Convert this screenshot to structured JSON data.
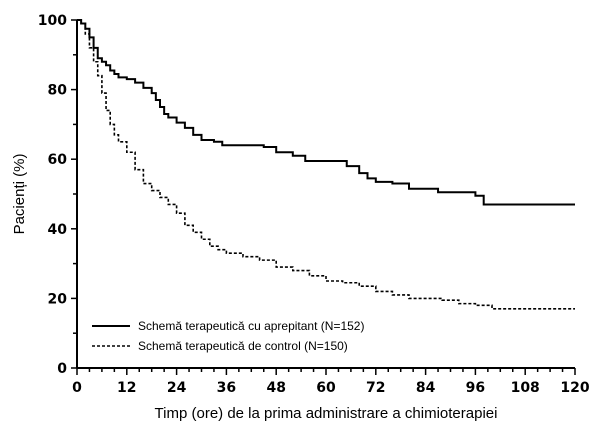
{
  "chart_data": {
    "type": "line",
    "xlabel": "Timp (ore) de la prima administrare a chimioterapiei",
    "ylabel": "Pacienți (%)",
    "xlim": [
      0,
      120
    ],
    "ylim": [
      0,
      100
    ],
    "xticks": [
      0,
      12,
      24,
      36,
      48,
      60,
      72,
      84,
      96,
      108,
      120
    ],
    "yticks": [
      0,
      20,
      40,
      60,
      80,
      100
    ],
    "grid": false,
    "legend_position": "bottom-left",
    "series": [
      {
        "name": "Schemă terapeutică cu aprepitant (N=152)",
        "style": "solid",
        "color": "#000000",
        "points": [
          [
            0,
            100
          ],
          [
            1,
            99
          ],
          [
            2,
            97.5
          ],
          [
            3,
            95
          ],
          [
            4,
            92
          ],
          [
            5,
            89
          ],
          [
            6,
            88
          ],
          [
            7,
            87
          ],
          [
            8,
            85.5
          ],
          [
            9,
            84.5
          ],
          [
            10,
            83.5
          ],
          [
            12,
            83
          ],
          [
            14,
            82
          ],
          [
            16,
            80.5
          ],
          [
            18,
            79
          ],
          [
            19,
            77
          ],
          [
            20,
            75
          ],
          [
            21,
            73
          ],
          [
            22,
            72
          ],
          [
            24,
            70.5
          ],
          [
            26,
            69
          ],
          [
            28,
            67
          ],
          [
            30,
            65.5
          ],
          [
            33,
            65
          ],
          [
            35,
            64
          ],
          [
            40,
            64
          ],
          [
            45,
            63.5
          ],
          [
            48,
            62
          ],
          [
            52,
            61
          ],
          [
            55,
            59.5
          ],
          [
            60,
            59.5
          ],
          [
            63,
            59.5
          ],
          [
            65,
            58
          ],
          [
            68,
            56
          ],
          [
            70,
            54.5
          ],
          [
            72,
            53.5
          ],
          [
            76,
            53
          ],
          [
            80,
            51.5
          ],
          [
            84,
            51.5
          ],
          [
            87,
            50.5
          ],
          [
            92,
            50.5
          ],
          [
            96,
            49.5
          ],
          [
            98,
            47
          ],
          [
            104,
            47
          ],
          [
            108,
            47
          ],
          [
            112,
            47
          ],
          [
            116,
            47
          ],
          [
            120,
            47
          ]
        ]
      },
      {
        "name": "Schemă terapeutică de control (N=150)",
        "style": "dashed",
        "color": "#000000",
        "points": [
          [
            0,
            100
          ],
          [
            1,
            99
          ],
          [
            2,
            96
          ],
          [
            3,
            92
          ],
          [
            4,
            88
          ],
          [
            5,
            84
          ],
          [
            6,
            79
          ],
          [
            7,
            74
          ],
          [
            8,
            70
          ],
          [
            9,
            67
          ],
          [
            10,
            65
          ],
          [
            12,
            62
          ],
          [
            14,
            57
          ],
          [
            16,
            53
          ],
          [
            18,
            51
          ],
          [
            20,
            49
          ],
          [
            22,
            47
          ],
          [
            24,
            44.5
          ],
          [
            26,
            41
          ],
          [
            28,
            39
          ],
          [
            30,
            37
          ],
          [
            32,
            35
          ],
          [
            34,
            34
          ],
          [
            36,
            33
          ],
          [
            40,
            32
          ],
          [
            44,
            31
          ],
          [
            48,
            29
          ],
          [
            52,
            28
          ],
          [
            56,
            26.5
          ],
          [
            60,
            25
          ],
          [
            64,
            24.5
          ],
          [
            68,
            23.5
          ],
          [
            72,
            22
          ],
          [
            76,
            21
          ],
          [
            80,
            20
          ],
          [
            84,
            20
          ],
          [
            88,
            19.5
          ],
          [
            92,
            18.5
          ],
          [
            96,
            18
          ],
          [
            100,
            17
          ],
          [
            104,
            17
          ],
          [
            108,
            17
          ],
          [
            112,
            17
          ],
          [
            116,
            17
          ],
          [
            120,
            17
          ]
        ]
      }
    ]
  }
}
